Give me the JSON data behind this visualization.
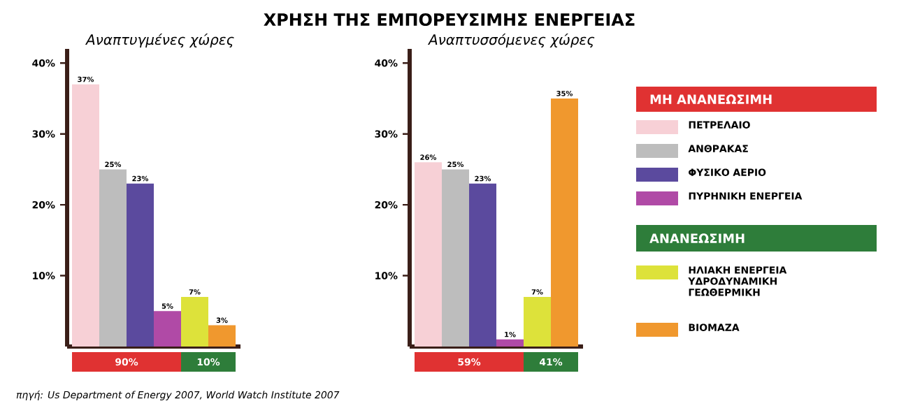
{
  "chart_data": [
    {
      "type": "bar",
      "subtitle": "Αναπτυγμένες χώρες",
      "categories": [
        null
      ],
      "series": [
        {
          "color": "#f7d0d6",
          "values": [
            37
          ],
          "value_labels": [
            "37%"
          ]
        },
        {
          "color": "#bdbdbd",
          "values": [
            25
          ],
          "value_labels": [
            "25%"
          ]
        },
        {
          "color": "#5b4a9e",
          "values": [
            23
          ],
          "value_labels": [
            "23%"
          ]
        },
        {
          "color": "#b04aa6",
          "values": [
            5
          ],
          "value_labels": [
            "5%"
          ]
        },
        {
          "color": "#dde23a",
          "values": [
            7
          ],
          "value_labels": [
            "7%"
          ]
        },
        {
          "color": "#f0982e",
          "values": [
            3
          ],
          "value_labels": [
            "3%"
          ]
        }
      ],
      "ylim": [
        0,
        42
      ],
      "yticks": [
        {
          "value": 10,
          "label": "10%"
        },
        {
          "value": 20,
          "label": "20%"
        },
        {
          "value": 30,
          "label": "30%"
        },
        {
          "value": 40,
          "label": "40%"
        }
      ],
      "annotations": [
        "90%",
        "10%",
        "πηγή: Us Department of Energy 2007, World Watch Institute 2007"
      ]
    },
    {
      "type": "bar",
      "title": "ΧΡΗΣΗ ΤΗΣ ΕΜΠΟΡΕΥΣΙΜΗΣ ΕΝΕΡΓΕΙΑΣ",
      "subtitle": "Αναπτυσσόμενες χώρες",
      "categories": [
        null
      ],
      "series": [
        {
          "name": "ΠΕΤΡΕΛΑΙΟ",
          "color": "#f7d0d6",
          "values": [
            26
          ],
          "value_labels": [
            "26%"
          ]
        },
        {
          "name": "ΑΝΘΡΑΚΑΣ",
          "color": "#bdbdbd",
          "values": [
            25
          ],
          "value_labels": [
            "25%"
          ]
        },
        {
          "name": "ΦΥΣΙΚΟ ΑΕΡΙΟ",
          "color": "#5b4a9e",
          "values": [
            23
          ],
          "value_labels": [
            "23%"
          ]
        },
        {
          "name": "ΠΥΡΗΝΙΚΗ ΕΝΕΡΓΕΙΑ",
          "color": "#b04aa6",
          "values": [
            1
          ],
          "value_labels": [
            "1%"
          ]
        },
        {
          "name": "ΗΛΙΑΚΗ ΕΝΕΡΓΕΙΑ ΥΔΡΟΔΥΝΑΜΙΚΗ ΓΕΩΘΕΡΜΙΚΗ",
          "color": "#dde23a",
          "values": [
            7
          ],
          "value_labels": [
            "7%"
          ]
        },
        {
          "name": "ΒΙΟΜΑΖΑ",
          "color": "#f0982e",
          "values": [
            35
          ],
          "value_labels": [
            "35%"
          ]
        }
      ],
      "ylim": [
        0,
        42
      ],
      "yticks": [
        {
          "value": 10,
          "label": "10%"
        },
        {
          "value": 20,
          "label": "20%"
        },
        {
          "value": 30,
          "label": "30%"
        },
        {
          "value": 40,
          "label": "40%"
        }
      ],
      "legend": "right",
      "annotations": [
        "59%",
        "41%",
        "ΜΗ ΑΝΑΝΕΩΣΙΜΗ",
        "ΑΝΑΝΕΩΣΙΜΗ"
      ]
    }
  ]
}
